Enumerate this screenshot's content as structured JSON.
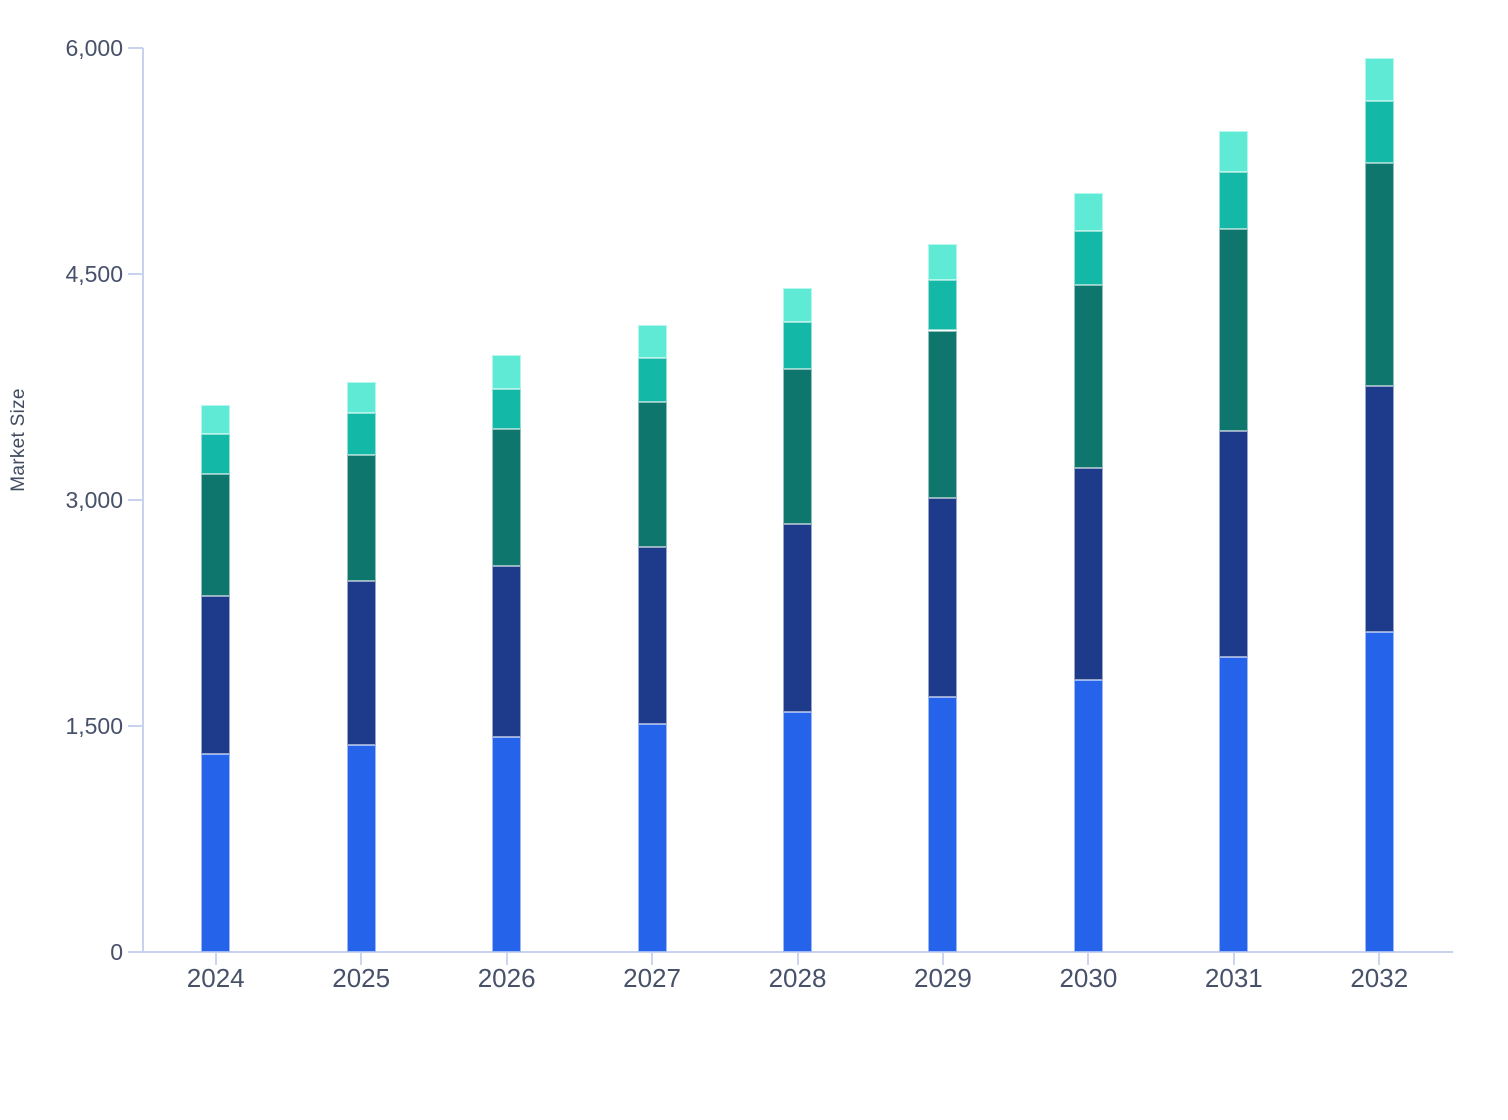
{
  "page": {
    "background_color": "#ffffff"
  },
  "chart_data": {
    "type": "bar",
    "stacked": true,
    "ylabel": "Market Size",
    "categories": [
      "2024",
      "2025",
      "2026",
      "2027",
      "2028",
      "2029",
      "2030",
      "2031",
      "2032"
    ],
    "series": [
      {
        "name": "blue-bottom-segment",
        "color": "#2563eb",
        "values": [
          1315,
          1375,
          1430,
          1510,
          1590,
          1695,
          1805,
          1960,
          2125
        ]
      },
      {
        "name": "navy-segment",
        "color": "#1e3a8a",
        "values": [
          1045,
          1085,
          1135,
          1180,
          1250,
          1315,
          1405,
          1495,
          1630
        ]
      },
      {
        "name": "dark-teal-segment",
        "color": "#0f766e",
        "values": [
          810,
          840,
          905,
          960,
          1030,
          1115,
          1220,
          1345,
          1480
        ]
      },
      {
        "name": "teal-segment",
        "color": "#14b8a6",
        "values": [
          265,
          275,
          270,
          290,
          310,
          335,
          355,
          375,
          415
        ]
      },
      {
        "name": "mint-top-segment",
        "color": "#5eead4",
        "values": [
          195,
          205,
          220,
          220,
          225,
          240,
          255,
          275,
          285
        ]
      }
    ],
    "totals": [
      3630,
      3780,
      3960,
      4160,
      4405,
      4700,
      5040,
      5450,
      5935
    ],
    "ylim": [
      0,
      6000
    ],
    "yticks": [
      0,
      1500,
      3000,
      4500,
      6000
    ],
    "ytick_labels": [
      "0",
      "1,500",
      "3,000",
      "4,500",
      "6,000"
    ],
    "grid": false,
    "legend_position": "none",
    "axis_color": "#c9d2ec",
    "tick_label_color": "#47516a"
  }
}
